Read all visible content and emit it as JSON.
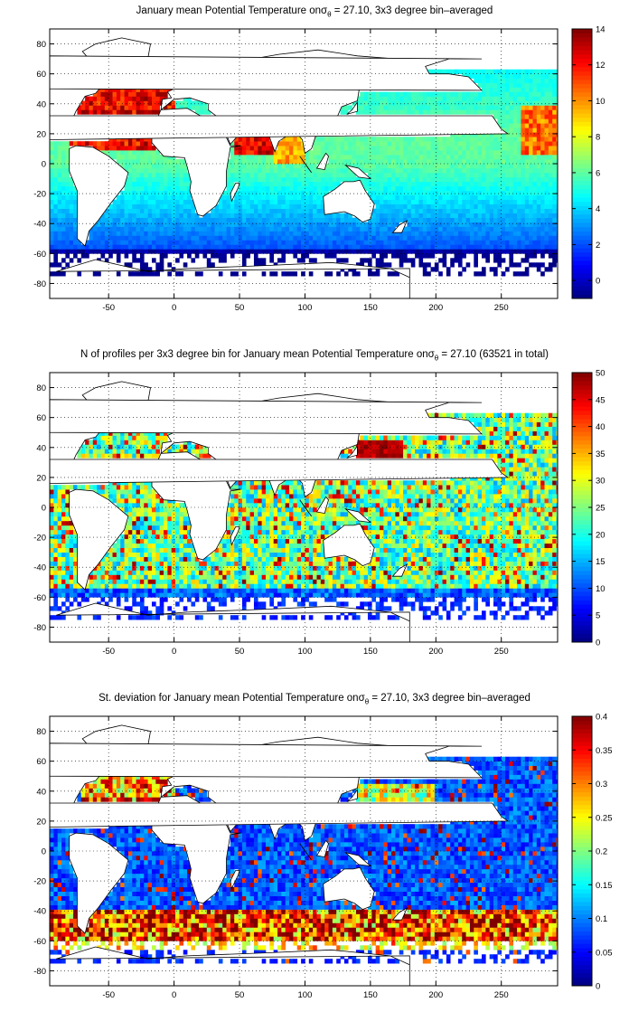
{
  "chart_data": [
    {
      "type": "heatmap",
      "title_prefix": "January mean Potential Temperature on",
      "title_symbol": "σ",
      "title_subscript": "θ",
      "title_suffix": " = 27.10, 3x3 degree bin–averaged",
      "xlim": [
        -95,
        293
      ],
      "ylim": [
        -90,
        90
      ],
      "xticks": [
        -50,
        0,
        50,
        100,
        150,
        200,
        250
      ],
      "yticks": [
        80,
        60,
        40,
        20,
        0,
        -20,
        -40,
        -60,
        -80
      ],
      "grid": true,
      "colorbar": {
        "range": [
          -1,
          14
        ],
        "ticks": [
          14,
          12,
          10,
          8,
          6,
          4,
          2,
          0
        ]
      },
      "field": "potential_temperature",
      "value_range": [
        -1,
        14
      ]
    },
    {
      "type": "heatmap",
      "title_prefix": "N of profiles per 3x3 degree bin for January mean Potential Temperature on",
      "title_symbol": "σ",
      "title_subscript": "θ",
      "title_suffix": " = 27.10 (63521 in total)",
      "xlim": [
        -95,
        293
      ],
      "ylim": [
        -90,
        90
      ],
      "xticks": [
        -50,
        0,
        50,
        100,
        150,
        200,
        250
      ],
      "yticks": [
        80,
        60,
        40,
        20,
        0,
        -20,
        -40,
        -60,
        -80
      ],
      "grid": true,
      "colorbar": {
        "range": [
          0,
          50
        ],
        "ticks": [
          50,
          45,
          40,
          35,
          30,
          25,
          20,
          15,
          10,
          5,
          0
        ]
      },
      "field": "profile_count",
      "value_range": [
        0,
        50
      ]
    },
    {
      "type": "heatmap",
      "title_prefix": "St. deviation for January mean Potential Temperature on",
      "title_symbol": "σ",
      "title_subscript": "θ",
      "title_suffix": " = 27.10, 3x3 degree bin–averaged",
      "xlim": [
        -95,
        293
      ],
      "ylim": [
        -90,
        90
      ],
      "xticks": [
        -50,
        0,
        50,
        100,
        150,
        200,
        250
      ],
      "yticks": [
        80,
        60,
        40,
        20,
        0,
        -20,
        -40,
        -60,
        -80
      ],
      "grid": true,
      "colorbar": {
        "range": [
          0,
          0.4
        ],
        "ticks": [
          0.4,
          0.35,
          0.3,
          0.25,
          0.2,
          0.15,
          0.1,
          0.05,
          0
        ]
      },
      "field": "standard_deviation",
      "value_range": [
        0,
        0.4
      ]
    }
  ]
}
